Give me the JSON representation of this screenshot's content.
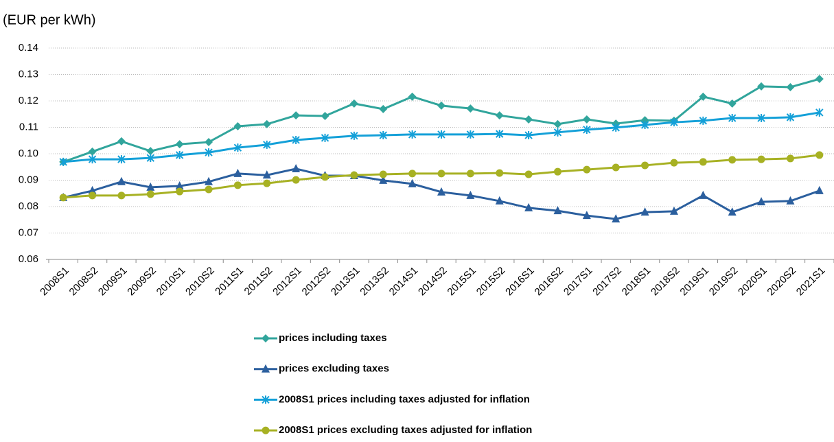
{
  "chart_data": {
    "type": "line",
    "y_label": "(EUR per kWh)",
    "categories": [
      "2008S1",
      "2008S2",
      "2009S1",
      "2009S2",
      "2010S1",
      "2010S2",
      "2011S1",
      "2011S2",
      "2012S1",
      "2012S2",
      "2013S1",
      "2013S2",
      "2014S1",
      "2014S2",
      "2015S1",
      "2015S2",
      "2016S1",
      "2016S2",
      "2017S1",
      "2017S2",
      "2018S1",
      "2018S2",
      "2019S1",
      "2019S2",
      "2020S1",
      "2020S2",
      "2021S1"
    ],
    "ylim": [
      0.06,
      0.14
    ],
    "yticks": [
      0.06,
      0.07,
      0.08,
      0.09,
      {
        "value": 0.1,
        "label": "0.10"
      },
      0.11,
      0.12,
      0.13,
      0.14
    ],
    "grid": true,
    "legend": "bottom",
    "series": [
      {
        "name": "prices including taxes",
        "color": "#31a59c",
        "marker": "diamond",
        "values": [
          0.0969,
          0.1008,
          0.1047,
          0.101,
          0.1036,
          0.1044,
          0.1104,
          0.1112,
          0.1145,
          0.1143,
          0.119,
          0.1169,
          0.1216,
          0.1182,
          0.1171,
          0.1145,
          0.113,
          0.1112,
          0.113,
          0.1114,
          0.1127,
          0.1125,
          0.1216,
          0.119,
          0.1255,
          0.1252,
          0.1283
        ]
      },
      {
        "name": "prices excluding taxes",
        "color": "#2b5f9e",
        "marker": "triangle",
        "values": [
          0.0834,
          0.086,
          0.0894,
          0.0873,
          0.0878,
          0.0894,
          0.0925,
          0.0919,
          0.0943,
          0.0917,
          0.0917,
          0.0899,
          0.0886,
          0.0855,
          0.0842,
          0.0821,
          0.0795,
          0.0784,
          0.0766,
          0.0753,
          0.0779,
          0.0782,
          0.0842,
          0.0779,
          0.0818,
          0.0821,
          0.086
        ]
      },
      {
        "name": "2008S1 prices including taxes adjusted for inflation",
        "color": "#14a0d8",
        "marker": "star",
        "values": [
          0.0969,
          0.0979,
          0.0979,
          0.0984,
          0.0995,
          0.1005,
          0.1023,
          0.1034,
          0.1052,
          0.106,
          0.1068,
          0.107,
          0.1073,
          0.1073,
          0.1073,
          0.1075,
          0.107,
          0.1081,
          0.1091,
          0.1099,
          0.1109,
          0.1119,
          0.1125,
          0.1135,
          0.1135,
          0.1138,
          0.1156
        ]
      },
      {
        "name": "2008S1 prices excluding taxes adjusted for inflation",
        "color": "#a7b123",
        "marker": "circle",
        "values": [
          0.0834,
          0.0842,
          0.0842,
          0.0847,
          0.0857,
          0.0865,
          0.0881,
          0.0888,
          0.0901,
          0.0912,
          0.0919,
          0.0922,
          0.0925,
          0.0925,
          0.0925,
          0.0927,
          0.0922,
          0.0932,
          0.094,
          0.0948,
          0.0956,
          0.0966,
          0.0969,
          0.0977,
          0.0979,
          0.0982,
          0.0995
        ]
      }
    ]
  }
}
